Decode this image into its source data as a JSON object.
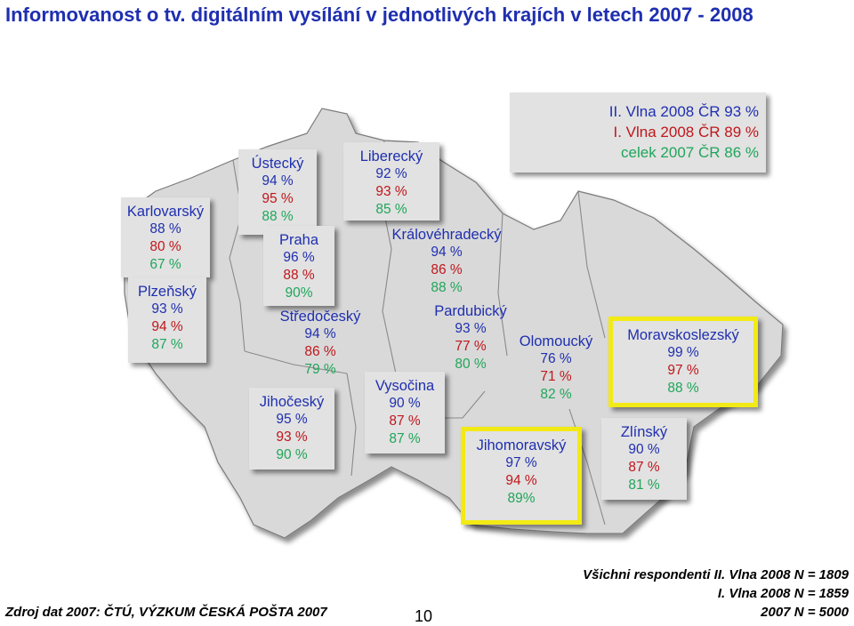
{
  "title": "Informovanost o tv. digitálním vysílání v jednotlivých krajích v letech 2007 - 2008",
  "colors": {
    "wave2": "#1f2fb0",
    "wave1": "#c0161b",
    "year2007": "#1fa65a",
    "highlight": "#f2ea15",
    "map_fill": "#d9d9d9"
  },
  "legend": {
    "line1": "II. Vlna 2008 ČR 93 %",
    "line2": "I. Vlna 2008 ČR 89 %",
    "line3": "celek 2007 ČR 86 %"
  },
  "regions": {
    "karlovarsky": {
      "name": "Karlovarský",
      "v1": "88 %",
      "v2": "80 %",
      "v3": "67 %"
    },
    "plzensky": {
      "name": "Plzeňský",
      "v1": "93 %",
      "v2": "94 %",
      "v3": "87 %"
    },
    "ustecky": {
      "name": "Ústecký",
      "v1": "94 %",
      "v2": "95 %",
      "v3": "88 %"
    },
    "liberecky": {
      "name": "Liberecký",
      "v1": "92 %",
      "v2": "93 %",
      "v3": "85 %"
    },
    "praha": {
      "name": "Praha",
      "v1": "96 %",
      "v2": "88 %",
      "v3": "90%"
    },
    "stredocesky": {
      "name": "Středočeský",
      "v1": "94 %",
      "v2": "86 %",
      "v3": "79 %"
    },
    "kralovehradecky": {
      "name": "Královéhradecký",
      "v1": "94 %",
      "v2": "86 %",
      "v3": "88 %"
    },
    "pardubicky": {
      "name": "Pardubický",
      "v1": "93 %",
      "v2": "77 %",
      "v3": "80 %"
    },
    "jihocesky": {
      "name": "Jihočeský",
      "v1": "95 %",
      "v2": "93 %",
      "v3": "90 %"
    },
    "vysocina": {
      "name": "Vysočina",
      "v1": "90 %",
      "v2": "87 %",
      "v3": "87 %"
    },
    "olomoucky": {
      "name": "Olomoucký",
      "v1": "76 %",
      "v2": "71 %",
      "v3": "82 %"
    },
    "moravskoslezsky": {
      "name": "Moravskoslezský",
      "v1": "99 %",
      "v2": "97 %",
      "v3": "88 %"
    },
    "jihomoravsky": {
      "name": "Jihomoravský",
      "v1": "97 %",
      "v2": "94 %",
      "v3": "89%"
    },
    "zlinsky": {
      "name": "Zlínský",
      "v1": "90 %",
      "v2": "87 %",
      "v3": "81 %"
    }
  },
  "footer": {
    "source": "Zdroj dat 2007: ČTÚ, VÝZKUM ČESKÁ POŠTA 2007",
    "page_number": "10",
    "respondents_line1": "Všichni respondenti II. Vlna 2008 N = 1809",
    "respondents_line2": "I. Vlna 2008 N = 1859",
    "respondents_line3": "2007 N = 5000"
  }
}
